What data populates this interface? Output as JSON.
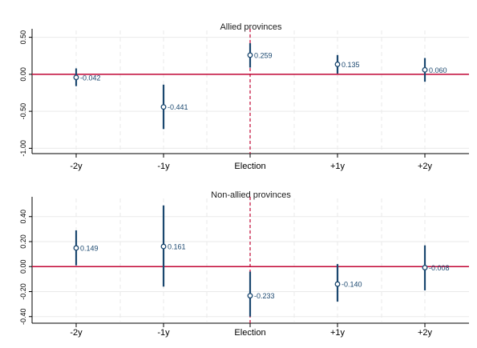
{
  "chart_data": [
    {
      "type": "scatter",
      "title": "Allied provinces",
      "categories": [
        "-2y",
        "-1y",
        "Election",
        "+1y",
        "+2y"
      ],
      "values": [
        -0.042,
        -0.441,
        0.259,
        0.135,
        0.06
      ],
      "value_labels": [
        "-0.042",
        "-0.441",
        "0.259",
        "0.135",
        "0.060"
      ],
      "ci_low": [
        -0.16,
        -0.74,
        0.09,
        0.01,
        -0.1
      ],
      "ci_high": [
        0.08,
        -0.14,
        0.42,
        0.26,
        0.22
      ],
      "ylim": [
        -1.05,
        0.55
      ],
      "yticks": [
        0.5,
        0.0,
        -0.5,
        -1.0
      ],
      "ytick_labels": [
        "0.50",
        "0.00",
        "-0.50",
        "-1.00"
      ],
      "reference_line": 0,
      "event_line_category": "Election",
      "grid": true,
      "colors": {
        "marker": "#1a476f",
        "zero_line": "#c10534",
        "event_line": "#c10534",
        "grid": "#eaeaea"
      }
    },
    {
      "type": "scatter",
      "title": "Non-allied provinces",
      "categories": [
        "-2y",
        "-1y",
        "Election",
        "+1y",
        "+2y"
      ],
      "values": [
        0.149,
        0.161,
        -0.233,
        -0.14,
        -0.008
      ],
      "value_labels": [
        "0.149",
        "0.161",
        "-0.233",
        "-0.140",
        "-0.008"
      ],
      "ci_low": [
        0.01,
        -0.16,
        -0.4,
        -0.28,
        -0.19
      ],
      "ci_high": [
        0.29,
        0.49,
        -0.04,
        0.02,
        0.17
      ],
      "ylim": [
        -0.44,
        0.52
      ],
      "yticks": [
        0.4,
        0.2,
        0.0,
        -0.2,
        -0.4
      ],
      "ytick_labels": [
        "0.40",
        "0.20",
        "0.00",
        "-0.20",
        "-0.40"
      ],
      "reference_line": 0,
      "event_line_category": "Election",
      "grid": true,
      "colors": {
        "marker": "#1a476f",
        "zero_line": "#c10534",
        "event_line": "#c10534",
        "grid": "#eaeaea"
      }
    }
  ]
}
